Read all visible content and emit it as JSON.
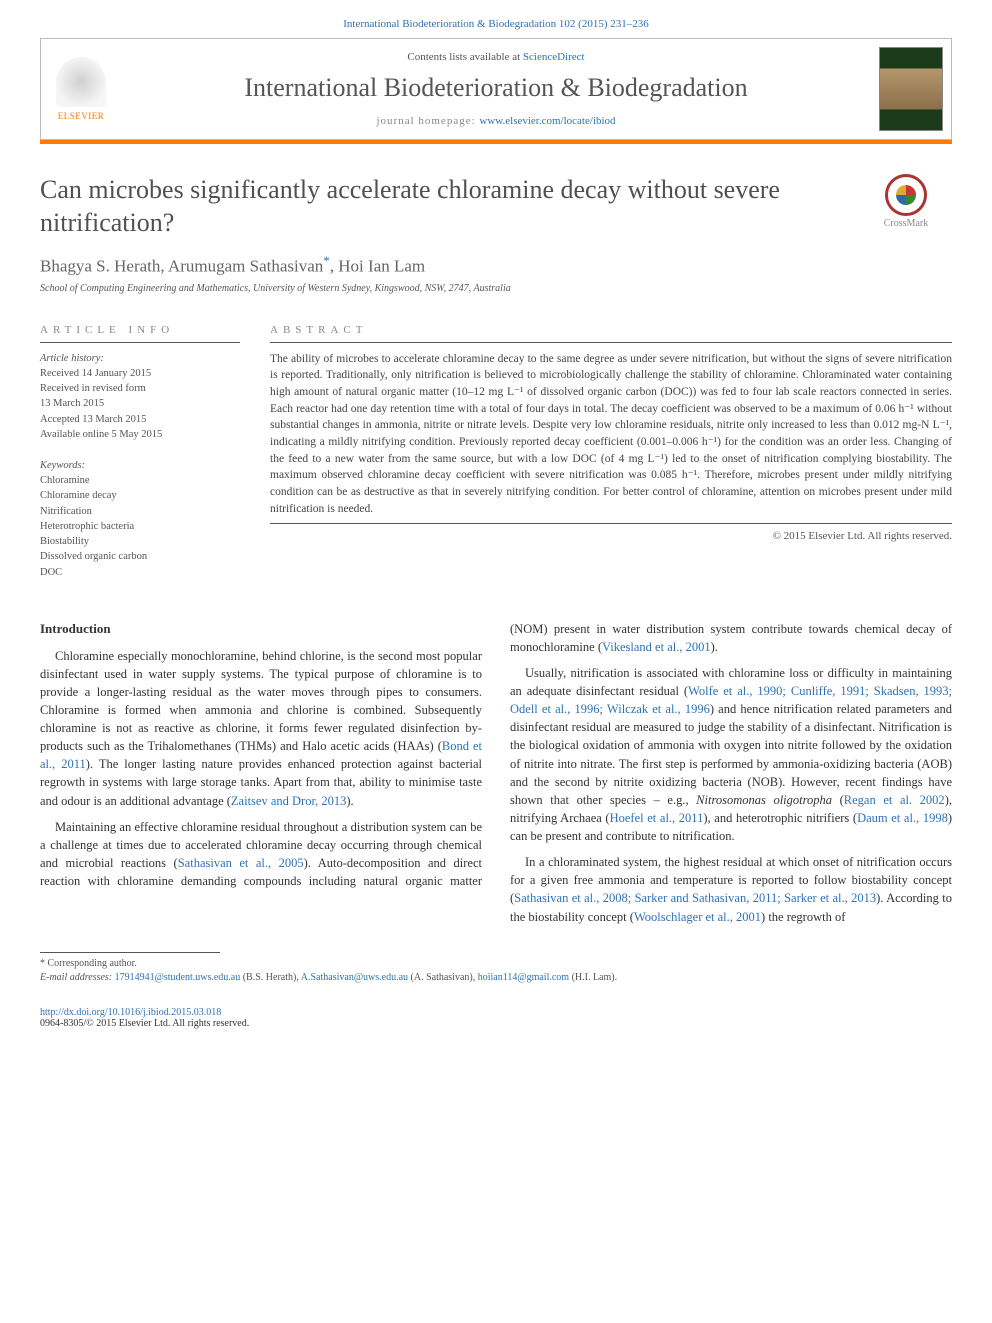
{
  "citation": "International Biodeterioration & Biodegradation 102 (2015) 231–236",
  "header": {
    "contents_prefix": "Contents lists available at ",
    "contents_link": "ScienceDirect",
    "journal_title": "International Biodeterioration & Biodegradation",
    "homepage_prefix": "journal homepage: ",
    "homepage_link": "www.elsevier.com/locate/ibiod",
    "publisher_name": "ELSEVIER"
  },
  "crossmark_label": "CrossMark",
  "article": {
    "title": "Can microbes significantly accelerate chloramine decay without severe nitrification?",
    "authors_html": "Bhagya S. Herath, Arumugam Sathasivan",
    "author3": ", Hoi Ian Lam",
    "corr_mark": "*",
    "affiliation": "School of Computing Engineering and Mathematics, University of Western Sydney, Kingswood, NSW, 2747, Australia"
  },
  "info": {
    "heading": "article info",
    "history_label": "Article history:",
    "received": "Received 14 January 2015",
    "revised1": "Received in revised form",
    "revised2": "13 March 2015",
    "accepted": "Accepted 13 March 2015",
    "online": "Available online 5 May 2015",
    "keywords_label": "Keywords:",
    "keywords": [
      "Chloramine",
      "Chloramine decay",
      "Nitrification",
      "Heterotrophic bacteria",
      "Biostability",
      "Dissolved organic carbon",
      "DOC"
    ]
  },
  "abstract": {
    "heading": "abstract",
    "text": "The ability of microbes to accelerate chloramine decay to the same degree as under severe nitrification, but without the signs of severe nitrification is reported. Traditionally, only nitrification is believed to microbiologically challenge the stability of chloramine. Chloraminated water containing high amount of natural organic matter (10–12 mg L⁻¹ of dissolved organic carbon (DOC)) was fed to four lab scale reactors connected in series. Each reactor had one day retention time with a total of four days in total. The decay coefficient was observed to be a maximum of 0.06 h⁻¹ without substantial changes in ammonia, nitrite or nitrate levels. Despite very low chloramine residuals, nitrite only increased to less than 0.012 mg-N L⁻¹, indicating a mildly nitrifying condition. Previously reported decay coefficient (0.001–0.006 h⁻¹) for the condition was an order less. Changing of the feed to a new water from the same source, but with a low DOC (of 4 mg L⁻¹) led to the onset of nitrification complying biostability. The maximum observed chloramine decay coefficient with severe nitrification was 0.085 h⁻¹. Therefore, microbes present under mildly nitrifying condition can be as destructive as that in severely nitrifying condition. For better control of chloramine, attention on microbes present under mild nitrification is needed.",
    "copyright": "© 2015 Elsevier Ltd. All rights reserved."
  },
  "body": {
    "intro_heading": "Introduction",
    "p1a": "Chloramine especially monochloramine, behind chlorine, is the second most popular disinfectant used in water supply systems. The typical purpose of chloramine is to provide a longer-lasting residual as the water moves through pipes to consumers. Chloramine is formed when ammonia and chlorine is combined. Subsequently chloramine is not as reactive as chlorine, it forms fewer regulated disinfection by-products such as the Trihalomethanes (THMs) and Halo acetic acids (HAAs) (",
    "p1ref1": "Bond et al., 2011",
    "p1b": "). The longer lasting nature provides enhanced protection against bacterial regrowth in systems with large storage tanks. Apart from that, ability to minimise taste and odour is an additional advantage (",
    "p1ref2": "Zaitsev and Dror, 2013",
    "p1c": ").",
    "p2a": "Maintaining an effective chloramine residual throughout a distribution system can be a challenge at times due to accelerated chloramine decay occurring through chemical and microbial reactions (",
    "p2ref1": "Sathasivan et al., 2005",
    "p2b": "). Auto-decomposition and direct reaction with chloramine demanding compounds including natural organic matter (NOM) present in water distribution system contribute towards chemical decay of monochloramine (",
    "p2ref2": "Vikesland et al., 2001",
    "p2c": ").",
    "p3a": "Usually, nitrification is associated with chloramine loss or difficulty in maintaining an adequate disinfectant residual (",
    "p3ref1": "Wolfe et al., 1990; Cunliffe, 1991; Skadsen, 1993; Odell et al., 1996; Wilczak et al., 1996",
    "p3b": ") and hence nitrification related parameters and disinfectant residual are measured to judge the stability of a disinfectant. Nitrification is the biological oxidation of ammonia with oxygen into nitrite followed by the oxidation of nitrite into nitrate. The first step is performed by ammonia-oxidizing bacteria (AOB) and the second by nitrite oxidizing bacteria (NOB). However, recent findings have shown that other species – e.g., ",
    "p3sp": "Nitrosomonas oligotropha",
    "p3c": " (",
    "p3ref2": "Regan et al. 2002",
    "p3d": "), nitrifying Archaea (",
    "p3ref3": "Hoefel et al., 2011",
    "p3e": "), and heterotrophic nitrifiers (",
    "p3ref4": "Daum et al., 1998",
    "p3f": ") can be present and contribute to nitrification.",
    "p4a": "In a chloraminated system, the highest residual at which onset of nitrification occurs for a given free ammonia and temperature is reported to follow biostability concept (",
    "p4ref1": "Sathasivan et al., 2008; Sarker and Sathasivan, 2011; Sarker et al., 2013",
    "p4b": "). According to the biostability concept (",
    "p4ref2": "Woolschlager et al., 2001",
    "p4c": ") the regrowth of"
  },
  "footer": {
    "corr_label": "* Corresponding author.",
    "emails_label": "E-mail addresses:",
    "e1": "17914941@student.uws.edu.au",
    "n1": " (B.S. Herath), ",
    "e2": "A.Sathasivan@uws.edu.au",
    "n2": " (A. Sathasivan), ",
    "e3": "hoiian114@gmail.com",
    "n3": " (H.I. Lam).",
    "doi": "http://dx.doi.org/10.1016/j.ibiod.2015.03.018",
    "issn_line": "0964-8305/© 2015 Elsevier Ltd. All rights reserved."
  },
  "colors": {
    "link": "#2e72b5",
    "accent": "#ff7a00",
    "text_body": "#333333",
    "text_muted": "#555555"
  }
}
